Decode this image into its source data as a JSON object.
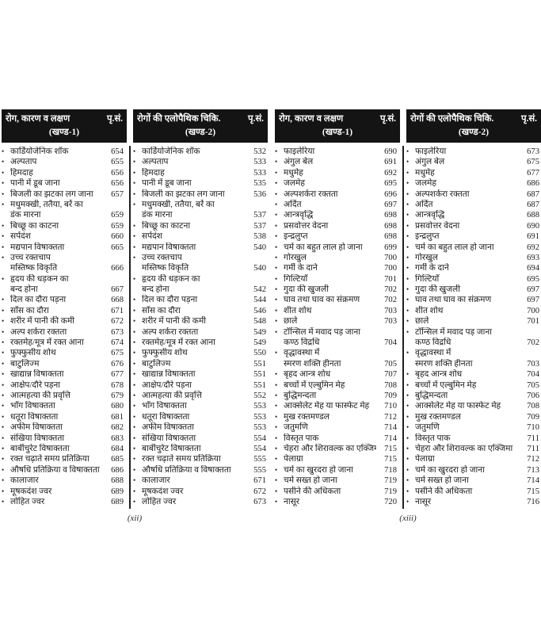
{
  "icons": {
    "bullet": "•"
  },
  "colors": {
    "header_bg": "#141414",
    "header_text": "#ffffff",
    "body_text": "#1b1b1b",
    "page_bg": "#ffffff"
  },
  "doc": {
    "pages": [
      {
        "footer": "(xii)",
        "sections": [
          {
            "header": {
              "title": "रोग, कारण व लक्षण",
              "page_col": "पृ.सं.",
              "subtitle": "(खण्ड-1)"
            },
            "entries": [
              {
                "label": "कार्डियोजेनिक शॉक",
                "page": "654"
              },
              {
                "label": "अल्पताप",
                "page": "655"
              },
              {
                "label": "हिमदाह",
                "page": "656"
              },
              {
                "label": "पानी में डूब जाना",
                "page": "656"
              },
              {
                "label": "बिजली का झटका लग जाना",
                "page": "657"
              },
              {
                "label": "मधुमक्खी, ततैया, बर्रे का",
                "label2": "डंक मारना",
                "page": "659"
              },
              {
                "label": "बिच्छू का काटना",
                "page": "659"
              },
              {
                "label": "सर्पदंश",
                "page": "660"
              },
              {
                "label": "मद्यपान विषाक्तता",
                "page": "665"
              },
              {
                "label": "उच्च रक्तचाप",
                "label2": "मस्तिष्क विकृति",
                "page": "666"
              },
              {
                "label": "हृदय की धड़कन का",
                "label2": "बन्द होना",
                "page": "667"
              },
              {
                "label": "दिल का दौरा पड़ना",
                "page": "668"
              },
              {
                "label": "साँस का दौरा",
                "page": "671"
              },
              {
                "label": "शरीर में पानी की कमी",
                "page": "672"
              },
              {
                "label": "अल्प शर्करा रक्तता",
                "page": "673"
              },
              {
                "label": "रक्तमेह/मूत्र में रक्त आना",
                "page": "674"
              },
              {
                "label": "फुफ्फुसीय शोथ",
                "page": "675"
              },
              {
                "label": "बाटुलिज्म",
                "page": "676"
              },
              {
                "label": "खाद्यान्न विषाक्तता",
                "page": "677"
              },
              {
                "label": "आक्षेप/दौरे पड़ना",
                "page": "678"
              },
              {
                "label": "आत्महत्या की प्रवृत्ति",
                "page": "679"
              },
              {
                "label": "भाँग विषाक्तता",
                "page": "680"
              },
              {
                "label": "धतूरा विषाक्तता",
                "page": "681"
              },
              {
                "label": "अफीम विषाक्तता",
                "page": "682"
              },
              {
                "label": "संखिया विषाक्तता",
                "page": "683"
              },
              {
                "label": "बार्बीचुरेट विषाक्तता",
                "page": "684"
              },
              {
                "label": "रक्त चढ़ाते समय प्रतिक्रिया",
                "page": "685"
              },
              {
                "label": "औषधि प्रतिक्रिया व विषाक्तता",
                "page": "686"
              },
              {
                "label": "कालाजार",
                "page": "688"
              },
              {
                "label": "मूषकदंश ज्वर",
                "page": "689"
              },
              {
                "label": "लोहित ज्वर",
                "page": "689"
              }
            ]
          },
          {
            "header": {
              "title": "रोगों की एलोपैथिक चिकि.",
              "page_col": "पृ.सं.",
              "subtitle": "(खण्ड-2)"
            },
            "entries": [
              {
                "label": "कार्डियोजेनिक शॉक",
                "page": "532"
              },
              {
                "label": "अल्पताप",
                "page": "533"
              },
              {
                "label": "हिमदाह",
                "page": "533"
              },
              {
                "label": "पानी में डूब जाना",
                "page": "535"
              },
              {
                "label": "बिजली का झटका लग जाना",
                "page": "536"
              },
              {
                "label": "मधुमक्खी, ततैया, बर्रे का",
                "label2": "डंक मारना",
                "page": "537"
              },
              {
                "label": "बिच्छू का काटना",
                "page": "537"
              },
              {
                "label": "सर्पदंश",
                "page": "538"
              },
              {
                "label": "मद्यपान विषाक्तता",
                "page": "540"
              },
              {
                "label": "उच्च रक्तचाप",
                "label2": "मस्तिष्क विकृति",
                "page": "540"
              },
              {
                "label": "हृदय की धड़कन का",
                "label2": "बन्द होना",
                "page": "542"
              },
              {
                "label": "दिल का दौरा पड़ना",
                "page": "544"
              },
              {
                "label": "साँस का दौरा",
                "page": "546"
              },
              {
                "label": "शरीर में पानी की कमी",
                "page": "548"
              },
              {
                "label": "अल्प शर्करा रक्तता",
                "page": "549"
              },
              {
                "label": "रक्तमेह/मूत्र में रक्त आना",
                "page": "549"
              },
              {
                "label": "फुफ्फुसीय शोथ",
                "page": "550"
              },
              {
                "label": "बाटुलिज्म",
                "page": "551"
              },
              {
                "label": "खाद्यान्न विषाक्तता",
                "page": "551"
              },
              {
                "label": "आक्षेप/दौरे पड़ना",
                "page": "551"
              },
              {
                "label": "आत्महत्या की प्रवृत्ति",
                "page": "552"
              },
              {
                "label": "भाँग विषाक्तता",
                "page": "553"
              },
              {
                "label": "धतूरा विषाक्तता",
                "page": "553"
              },
              {
                "label": "अफीम विषाक्तता",
                "page": "553"
              },
              {
                "label": "संखिया विषाक्तता",
                "page": "554"
              },
              {
                "label": "बार्बीचुरेट विषाक्तता",
                "page": "554"
              },
              {
                "label": "रक्त चढ़ाते समय प्रतिक्रिया",
                "page": "555"
              },
              {
                "label": "औषधि प्रतिक्रिया व विषाक्तता",
                "page": "555"
              },
              {
                "label": "कालाजार",
                "page": "671"
              },
              {
                "label": "मूषकदंश ज्वर",
                "page": "672"
              },
              {
                "label": "लोहित ज्वर",
                "page": "673"
              }
            ]
          }
        ]
      },
      {
        "footer": "(xiii)",
        "sections": [
          {
            "header": {
              "title": "रोग, कारण व लक्षण",
              "page_col": "पृ.सं.",
              "subtitle": "(खण्ड-1)"
            },
            "entries": [
              {
                "label": "फाइलेरिया",
                "page": "690"
              },
              {
                "label": "अंगुल बेल",
                "page": "691"
              },
              {
                "label": "मधुमेह",
                "page": "692"
              },
              {
                "label": "जलमेह",
                "page": "695"
              },
              {
                "label": "अल्पशर्करा रक्तता",
                "page": "696"
              },
              {
                "label": "अर्दित",
                "page": "697"
              },
              {
                "label": "आन्त्रवृद्धि",
                "page": "698"
              },
              {
                "label": "प्रसवोत्तर वेदना",
                "page": "698"
              },
              {
                "label": "इन्द्रलुप्त",
                "page": "698"
              },
              {
                "label": "चर्म का बहुत लाल हो जाना",
                "page": "699"
              },
              {
                "label": "गोरखुल",
                "page": "700"
              },
              {
                "label": "गर्मी के दाने",
                "page": "700"
              },
              {
                "label": "गिल्टियाँ",
                "page": "701"
              },
              {
                "label": "गुदा की खुजली",
                "page": "702"
              },
              {
                "label": "घाव तथा घाव का संक्रमण",
                "page": "702"
              },
              {
                "label": "शीत शोथ",
                "page": "703"
              },
              {
                "label": "छाले",
                "page": "703"
              },
              {
                "label": "टॉन्सिल में मवाद पड़ जाना",
                "label2": "कण्ठ विद्रधि",
                "page": "704"
              },
              {
                "label": "वृद्धावस्था में",
                "label2": "स्मरण शक्ति हीनता",
                "page": "705"
              },
              {
                "label": "बृहद आन्त्र शोध",
                "page": "707"
              },
              {
                "label": "बच्चों में एल्बुमिन मेह",
                "page": "708"
              },
              {
                "label": "बुद्धिमन्दता",
                "page": "709"
              },
              {
                "label": "आक्सेलेट मेह या फास्फेट मेह",
                "page": "710"
              },
              {
                "label": "मुख रक्तमण्डल",
                "page": "712"
              },
              {
                "label": "जतुमणि",
                "page": "714"
              },
              {
                "label": "विस्तृत पाक",
                "page": "714"
              },
              {
                "label": "चेहरा और शिरावल्क का एक्जिमा",
                "page": "715"
              },
              {
                "label": "पेलाग्रा",
                "page": "715"
              },
              {
                "label": "चर्म का खुरदरा हो जाना",
                "page": "718"
              },
              {
                "label": "चर्म सख्त हो जाना",
                "page": "719"
              },
              {
                "label": "पसीने की अधिकता",
                "page": "719"
              },
              {
                "label": "नासूर",
                "page": "720"
              }
            ]
          },
          {
            "header": {
              "title": "रोगों की एलोपैथिक चिकि.",
              "page_col": "पृ.सं.",
              "subtitle": "(खण्ड-2)"
            },
            "entries": [
              {
                "label": "फाइलेरिया",
                "page": "673"
              },
              {
                "label": "अंगुल बेल",
                "page": "675"
              },
              {
                "label": "मधुमेह",
                "page": "677"
              },
              {
                "label": "जलमेह",
                "page": "686"
              },
              {
                "label": "अल्पशर्करा रक्तता",
                "page": "687"
              },
              {
                "label": "अर्दित",
                "page": "687"
              },
              {
                "label": "आन्त्रवृद्धि",
                "page": "688"
              },
              {
                "label": "प्रसवोत्तर वेदना",
                "page": "690"
              },
              {
                "label": "इन्द्रलुप्त",
                "page": "691"
              },
              {
                "label": "चर्म का बहुत लाल हो जाना",
                "page": "692"
              },
              {
                "label": "गोरखुल",
                "page": "693"
              },
              {
                "label": "गर्मी के दाने",
                "page": "694"
              },
              {
                "label": "गिल्टियाँ",
                "page": "695"
              },
              {
                "label": "गुदा की खुजली",
                "page": "697"
              },
              {
                "label": "घाव तथा घाव का संक्रमण",
                "page": "697"
              },
              {
                "label": "शीत शोथ",
                "page": "700"
              },
              {
                "label": "छाले",
                "page": "701"
              },
              {
                "label": "टॉन्सिल में मवाद पड़ जाना",
                "label2": "कण्ठ विद्रधि",
                "page": "702"
              },
              {
                "label": "वृद्धावस्था में",
                "label2": "स्मरण शक्ति हीनता",
                "page": "703"
              },
              {
                "label": "बृहद आन्त्र शोध",
                "page": "704"
              },
              {
                "label": "बच्चों में एल्बुमिन मेह",
                "page": "705"
              },
              {
                "label": "बुद्धिमन्दता",
                "page": "706"
              },
              {
                "label": "आक्सेलेट मेह या फास्फेट मेह",
                "page": "708"
              },
              {
                "label": "मुख रक्तमण्डल",
                "page": "709"
              },
              {
                "label": "जतुमणि",
                "page": "710"
              },
              {
                "label": "विस्तृत पाक",
                "page": "711"
              },
              {
                "label": "चेहरा और शिरावल्क का एक्जिमा",
                "page": "711"
              },
              {
                "label": "पेलाग्रा",
                "page": "712"
              },
              {
                "label": "चर्म का खुरदरा हो जाना",
                "page": "713"
              },
              {
                "label": "चर्म सख्त हो जाना",
                "page": "714"
              },
              {
                "label": "पसीने की अधिकता",
                "page": "715"
              },
              {
                "label": "नासूर",
                "page": "716"
              }
            ]
          }
        ]
      }
    ]
  }
}
